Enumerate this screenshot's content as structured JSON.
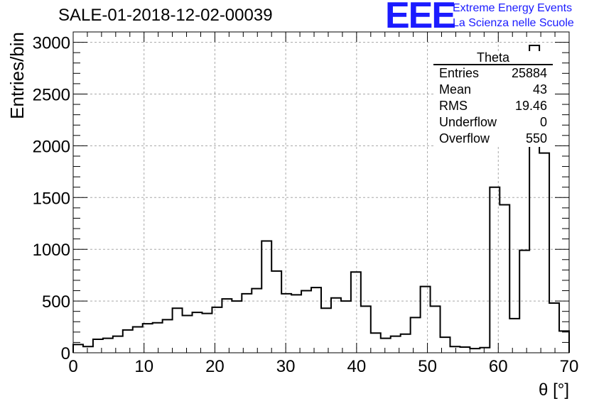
{
  "chart_data": {
    "type": "bar",
    "title": "SALE-01-2018-12-02-00039",
    "xlabel": "θ [°]",
    "ylabel": "Entries/bin",
    "xlim": [
      0,
      70
    ],
    "ylim": [
      0,
      3100
    ],
    "x_ticks": [
      0,
      10,
      20,
      30,
      40,
      50,
      60,
      70
    ],
    "y_ticks": [
      0,
      500,
      1000,
      1500,
      2000,
      2500,
      3000
    ],
    "grid": true,
    "bin_width": 1.4,
    "values": [
      80,
      60,
      130,
      140,
      160,
      220,
      250,
      280,
      290,
      320,
      430,
      360,
      390,
      380,
      440,
      520,
      500,
      570,
      620,
      1080,
      790,
      570,
      560,
      600,
      630,
      430,
      530,
      500,
      780,
      450,
      190,
      140,
      160,
      180,
      340,
      640,
      450,
      150,
      60,
      55,
      40,
      50,
      1600,
      1430,
      330,
      990,
      2970,
      1930,
      480,
      210
    ],
    "stats_box": {
      "title": "Theta",
      "rows": [
        {
          "key": "Entries",
          "value": "25884"
        },
        {
          "key": "Mean",
          "value": "43"
        },
        {
          "key": "RMS",
          "value": "19.46"
        },
        {
          "key": "Underflow",
          "value": "0"
        },
        {
          "key": "Overflow",
          "value": "550"
        }
      ]
    }
  },
  "logo": {
    "mark": "EEE",
    "line1": "Extreme Energy Events",
    "line2": "La Scienza nelle Scuole",
    "color": "#1b1bff"
  }
}
